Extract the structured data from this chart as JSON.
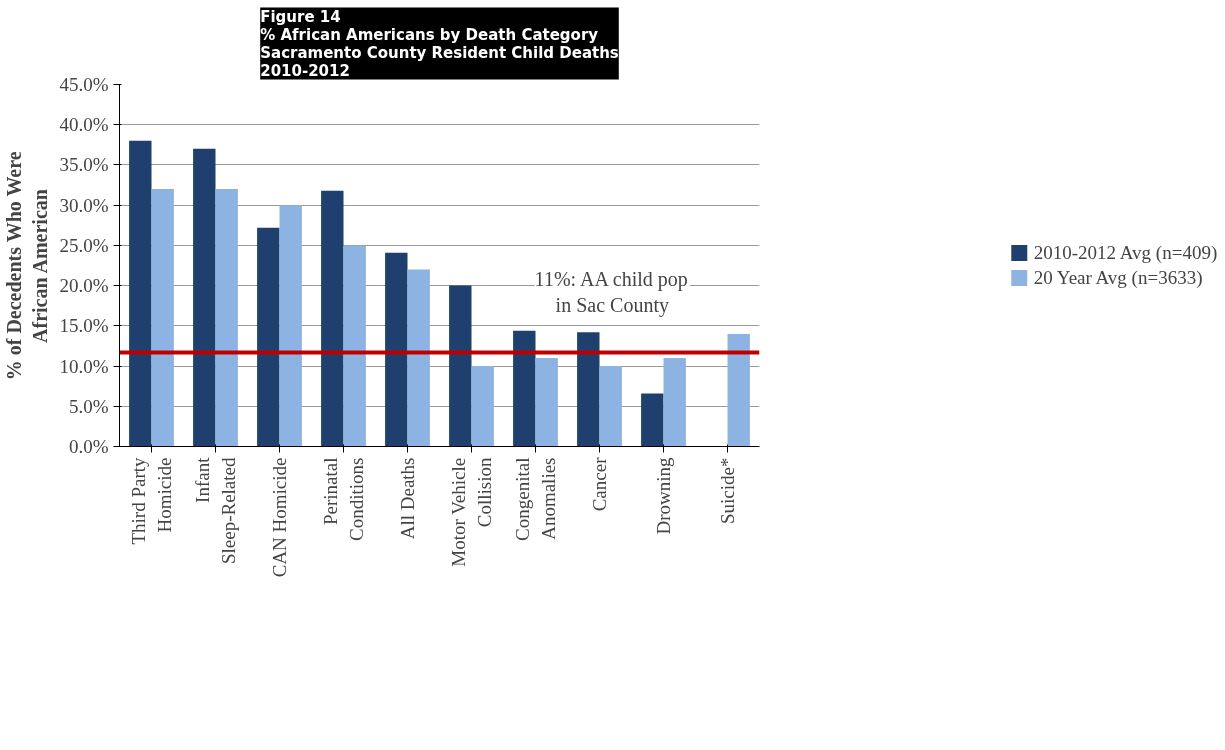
{
  "chart_data": {
    "type": "bar",
    "title": "Figure 14\n% African Americans by Death Category\nSacramento County Resident Child Deaths\n2010-2012",
    "ylabel": "% of Decedents Who Were\nAfrican American",
    "categories": [
      "Third Party\nHomicide",
      "Infant\nSleep-Related",
      "CAN Homicide",
      "Perinatal\nConditions",
      "All Deaths",
      "Motor Vehicle\nCollision",
      "Congenital\nAnomalies",
      "Cancer",
      "Drowning",
      "Suicide*"
    ],
    "series": [
      {
        "name": "2010-2012 Avg (n=409)",
        "color": "#1f3f6e",
        "values": [
          38.0,
          37.0,
          27.2,
          31.8,
          24.1,
          20.0,
          14.4,
          14.2,
          6.6,
          null
        ]
      },
      {
        "name": "20 Year Avg (n=3633)",
        "color": "#8db3e2",
        "values": [
          32.0,
          32.0,
          30.0,
          25.0,
          22.0,
          10.0,
          11.0,
          10.0,
          11.0,
          14.0
        ]
      }
    ],
    "ylim": [
      0,
      45
    ],
    "yticks": [
      {
        "value": 0,
        "label": "0.0%"
      },
      {
        "value": 5,
        "label": "5.0%"
      },
      {
        "value": 10,
        "label": "10.0%"
      },
      {
        "value": 15,
        "label": "15.0%"
      },
      {
        "value": 20,
        "label": "20.0%"
      },
      {
        "value": 25,
        "label": "25.0%"
      },
      {
        "value": 30,
        "label": "30.0%"
      },
      {
        "value": 35,
        "label": "35.0%"
      },
      {
        "value": 40,
        "label": "40.0%"
      },
      {
        "value": 45,
        "label": "45.0%"
      }
    ],
    "ref_lines": [
      {
        "axis": "y",
        "value": 11.7,
        "label": "11%: AA child pop\nin Sac County",
        "color": "#c00000"
      }
    ],
    "grid": "y",
    "legend": "right"
  }
}
